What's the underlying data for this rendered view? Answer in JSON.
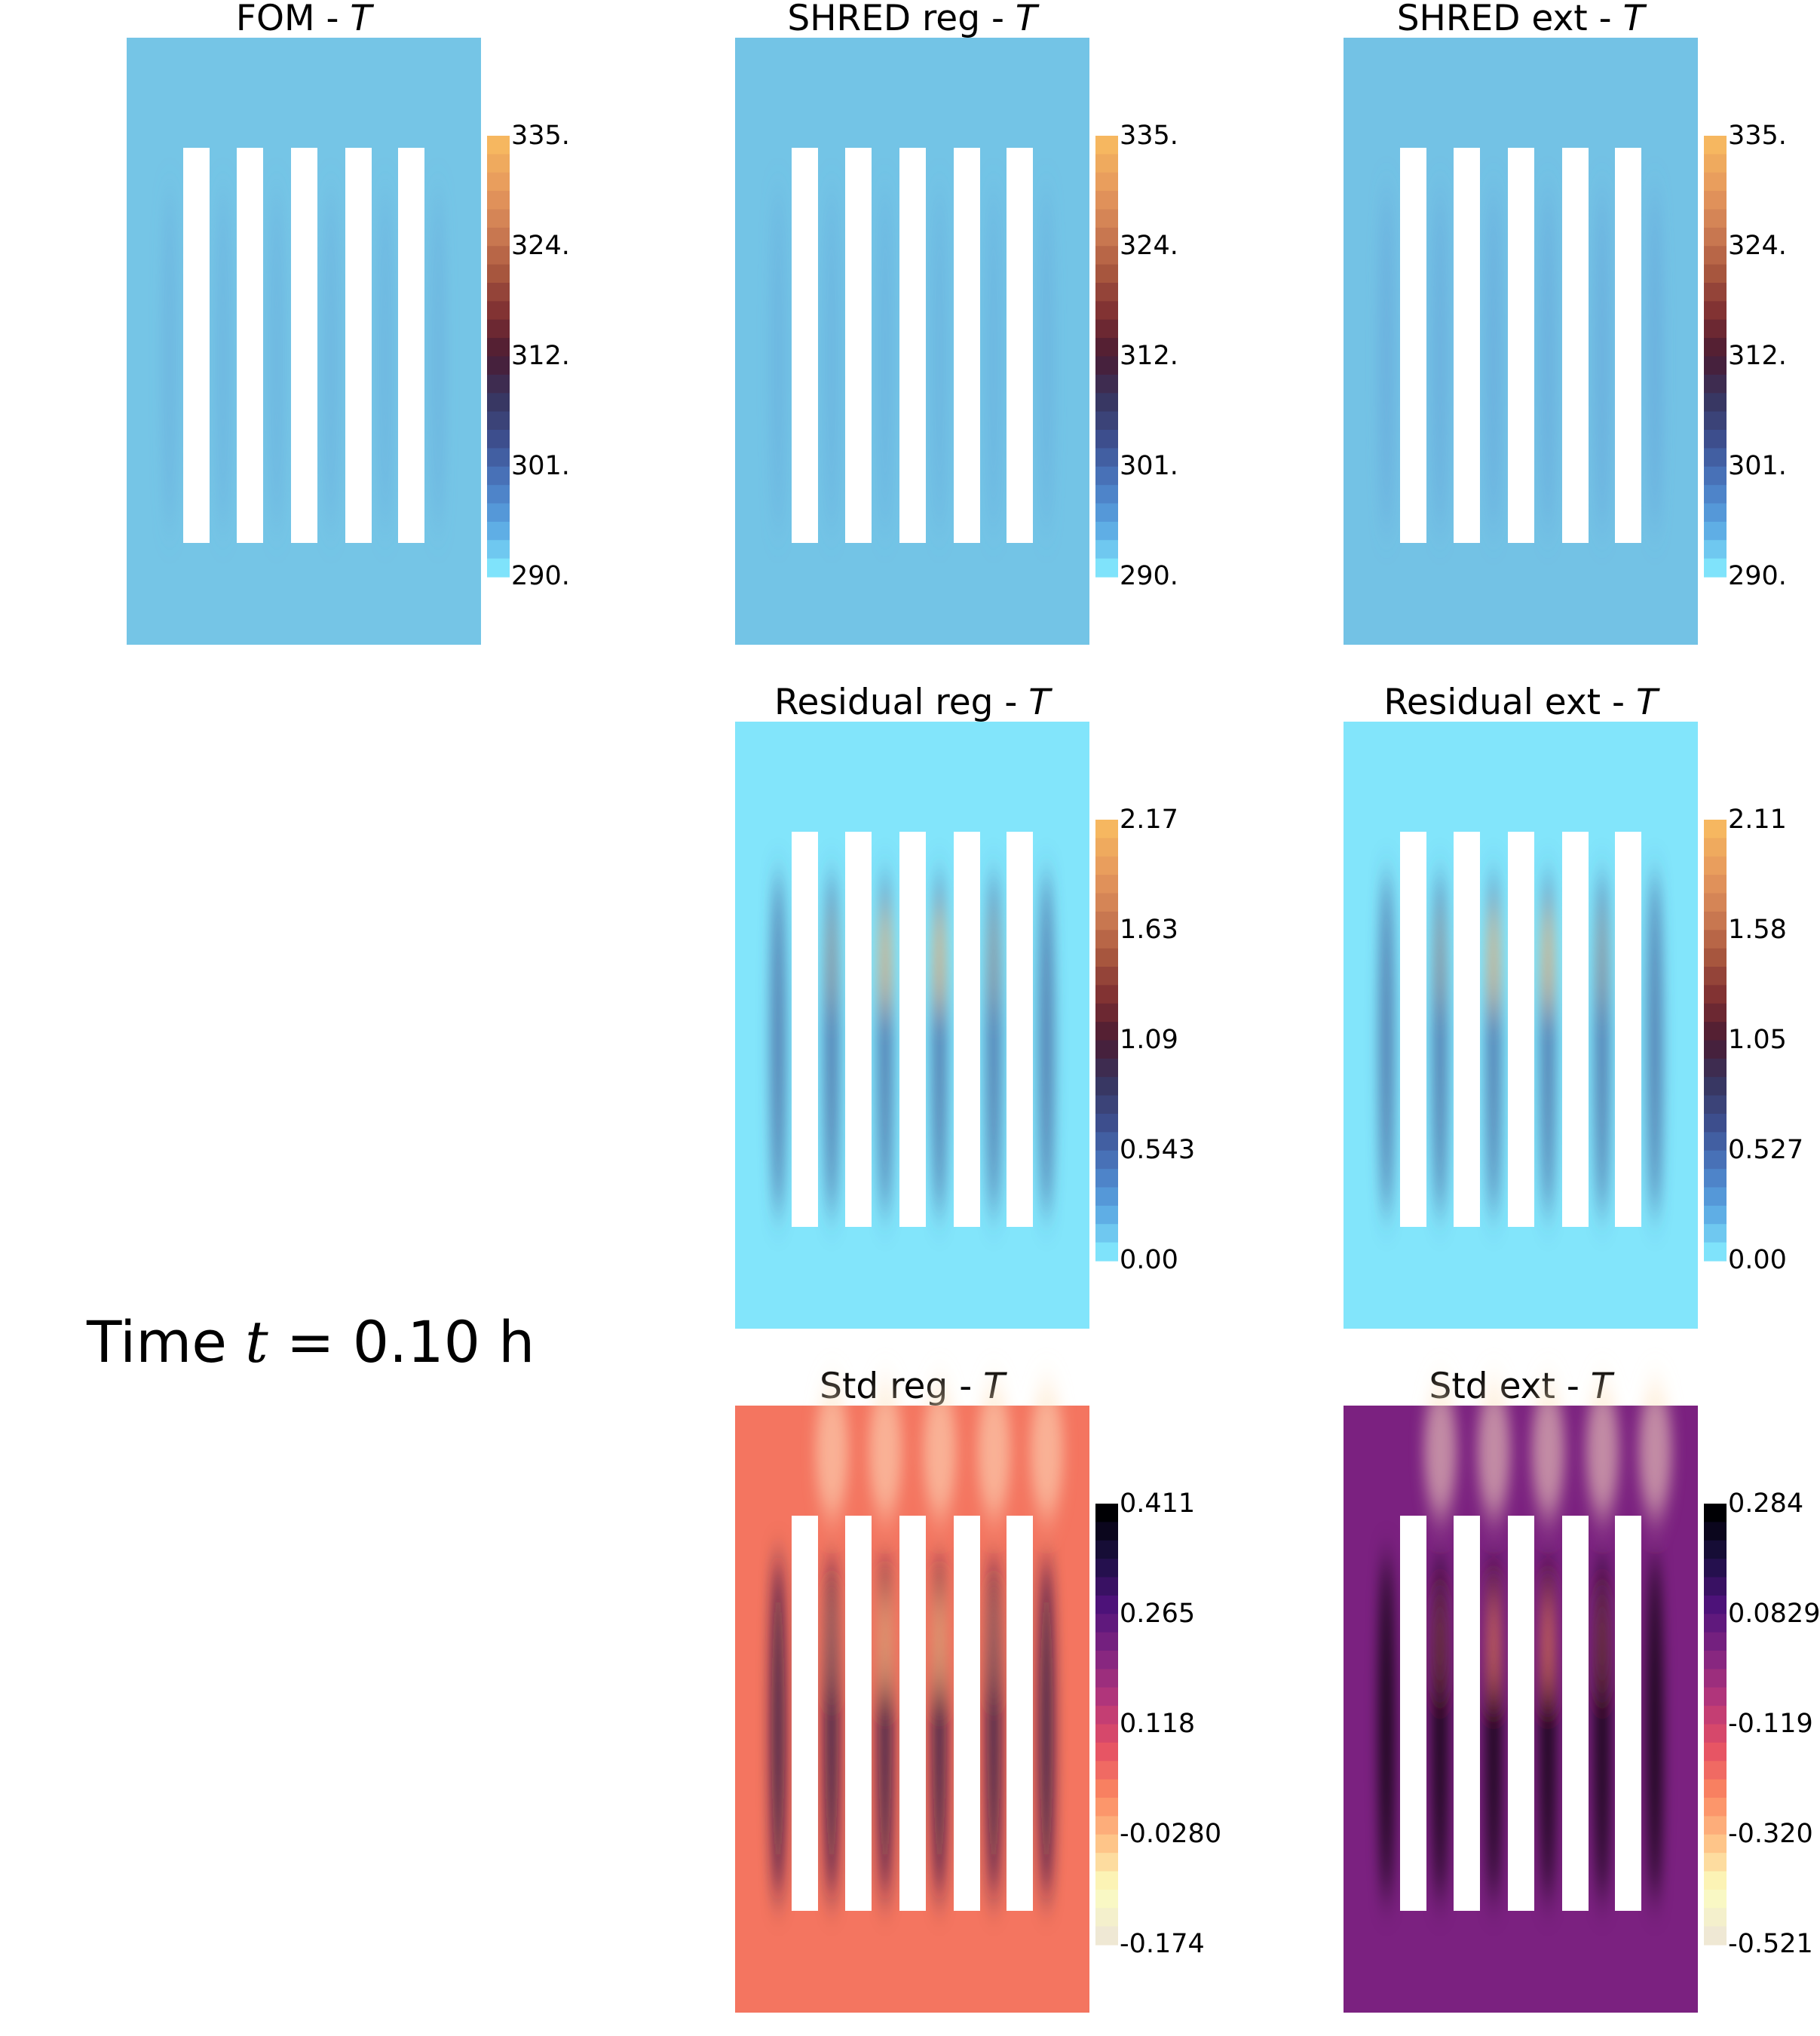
{
  "time_label": {
    "prefix": "Time ",
    "variable": "t",
    "equals": " = ",
    "value": "0.10",
    "unit": " h"
  },
  "chart_data": [
    {
      "type": "heatmap",
      "title": "FOM - ",
      "variable": "T",
      "colormap": "temperature",
      "colorbar_ticks": [
        "335.",
        "324.",
        "312.",
        "301.",
        "290."
      ],
      "range": [
        290,
        335
      ]
    },
    {
      "type": "heatmap",
      "title": "SHRED reg - ",
      "variable": "T",
      "colormap": "temperature",
      "colorbar_ticks": [
        "335.",
        "324.",
        "312.",
        "301.",
        "290."
      ],
      "range": [
        290,
        335
      ]
    },
    {
      "type": "heatmap",
      "title": "SHRED ext - ",
      "variable": "T",
      "colormap": "temperature",
      "colorbar_ticks": [
        "335.",
        "324.",
        "312.",
        "301.",
        "290."
      ],
      "range": [
        290,
        335
      ]
    },
    {
      "type": "heatmap",
      "title": "Residual reg - ",
      "variable": "T",
      "colormap": "temperature",
      "colorbar_ticks": [
        "2.17",
        "1.63",
        "1.09",
        "0.543",
        "0.00"
      ],
      "range": [
        0.0,
        2.17
      ]
    },
    {
      "type": "heatmap",
      "title": "Residual ext - ",
      "variable": "T",
      "colormap": "temperature",
      "colorbar_ticks": [
        "2.11",
        "1.58",
        "1.05",
        "0.527",
        "0.00"
      ],
      "range": [
        0.0,
        2.11
      ]
    },
    {
      "type": "heatmap",
      "title": "Std reg - ",
      "variable": "T",
      "colormap": "magma",
      "colorbar_ticks": [
        "0.411",
        "0.265",
        "0.118",
        "-0.0280",
        "-0.174"
      ],
      "range": [
        -0.174,
        0.411
      ]
    },
    {
      "type": "heatmap",
      "title": "Std ext - ",
      "variable": "T",
      "colormap": "magma",
      "colorbar_ticks": [
        "0.284",
        "0.0829",
        "-0.119",
        "-0.320",
        "-0.521"
      ],
      "range": [
        -0.521,
        0.284
      ]
    }
  ],
  "colormaps": {
    "temperature": [
      "#f6b760",
      "#e79a5c",
      "#cf7d54",
      "#a9583f",
      "#7e2f32",
      "#4a1c33",
      "#38355f",
      "#3d4f8f",
      "#4a78c0",
      "#5aa6e2",
      "#7fe3fb"
    ],
    "magma": [
      "#000004",
      "#1c1044",
      "#4f127b",
      "#812581",
      "#b5367a",
      "#e55064",
      "#fb8761",
      "#fec287",
      "#fcfdbf",
      "#efe8d4"
    ]
  }
}
